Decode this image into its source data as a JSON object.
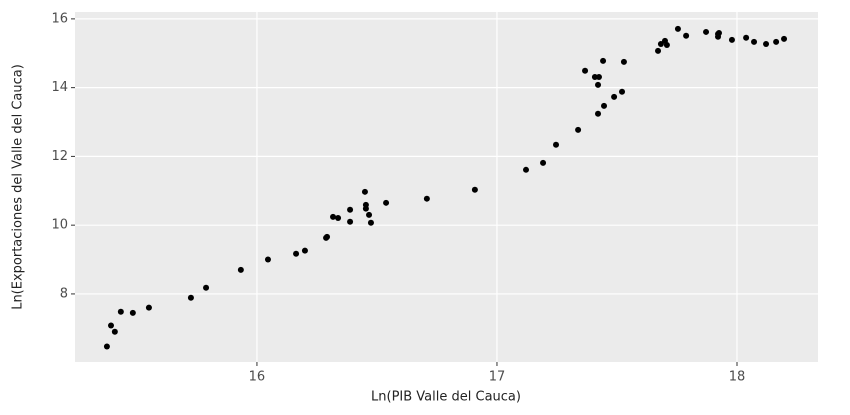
{
  "chart_data": {
    "type": "scatter",
    "x_label": "Ln(PIB Valle del Cauca)",
    "y_label": "Ln(Exportaciones del Valle del Cauca)",
    "x": [
      15.375,
      15.392,
      15.408,
      15.433,
      15.483,
      15.55,
      15.725,
      15.788,
      15.933,
      16.046,
      16.163,
      16.2,
      16.288,
      16.292,
      16.317,
      16.338,
      16.388,
      16.388,
      16.45,
      16.454,
      16.454,
      16.467,
      16.475,
      16.538,
      16.708,
      16.908,
      17.121,
      17.192,
      17.246,
      17.338,
      17.367,
      17.408,
      17.425,
      17.421,
      17.421,
      17.442,
      17.446,
      17.488,
      17.521,
      17.529,
      17.671,
      17.683,
      17.7,
      17.708,
      17.754,
      17.788,
      17.871,
      17.921,
      17.921,
      17.925,
      17.979,
      18.038,
      18.071,
      18.121,
      18.163,
      18.196
    ],
    "values": [
      6.47,
      7.08,
      6.9,
      7.48,
      7.45,
      7.6,
      7.89,
      8.18,
      8.7,
      9.0,
      9.17,
      9.26,
      9.63,
      9.66,
      10.24,
      10.21,
      10.45,
      10.1,
      10.97,
      10.59,
      10.48,
      10.3,
      10.07,
      10.65,
      10.77,
      11.03,
      11.61,
      11.81,
      12.34,
      12.77,
      14.49,
      14.31,
      14.31,
      14.08,
      13.24,
      14.78,
      13.47,
      13.73,
      13.88,
      14.75,
      15.07,
      15.27,
      15.36,
      15.24,
      15.71,
      15.51,
      15.62,
      15.56,
      15.48,
      15.59,
      15.39,
      15.45,
      15.33,
      15.27,
      15.33,
      15.42
    ],
    "color": "#000000",
    "xlim": [
      15.242,
      18.3375
    ],
    "ylim": [
      6.02,
      16.2
    ],
    "xticks": [
      16,
      17,
      18
    ],
    "yticks": [
      8,
      10,
      12,
      14,
      16
    ],
    "grid": true
  }
}
